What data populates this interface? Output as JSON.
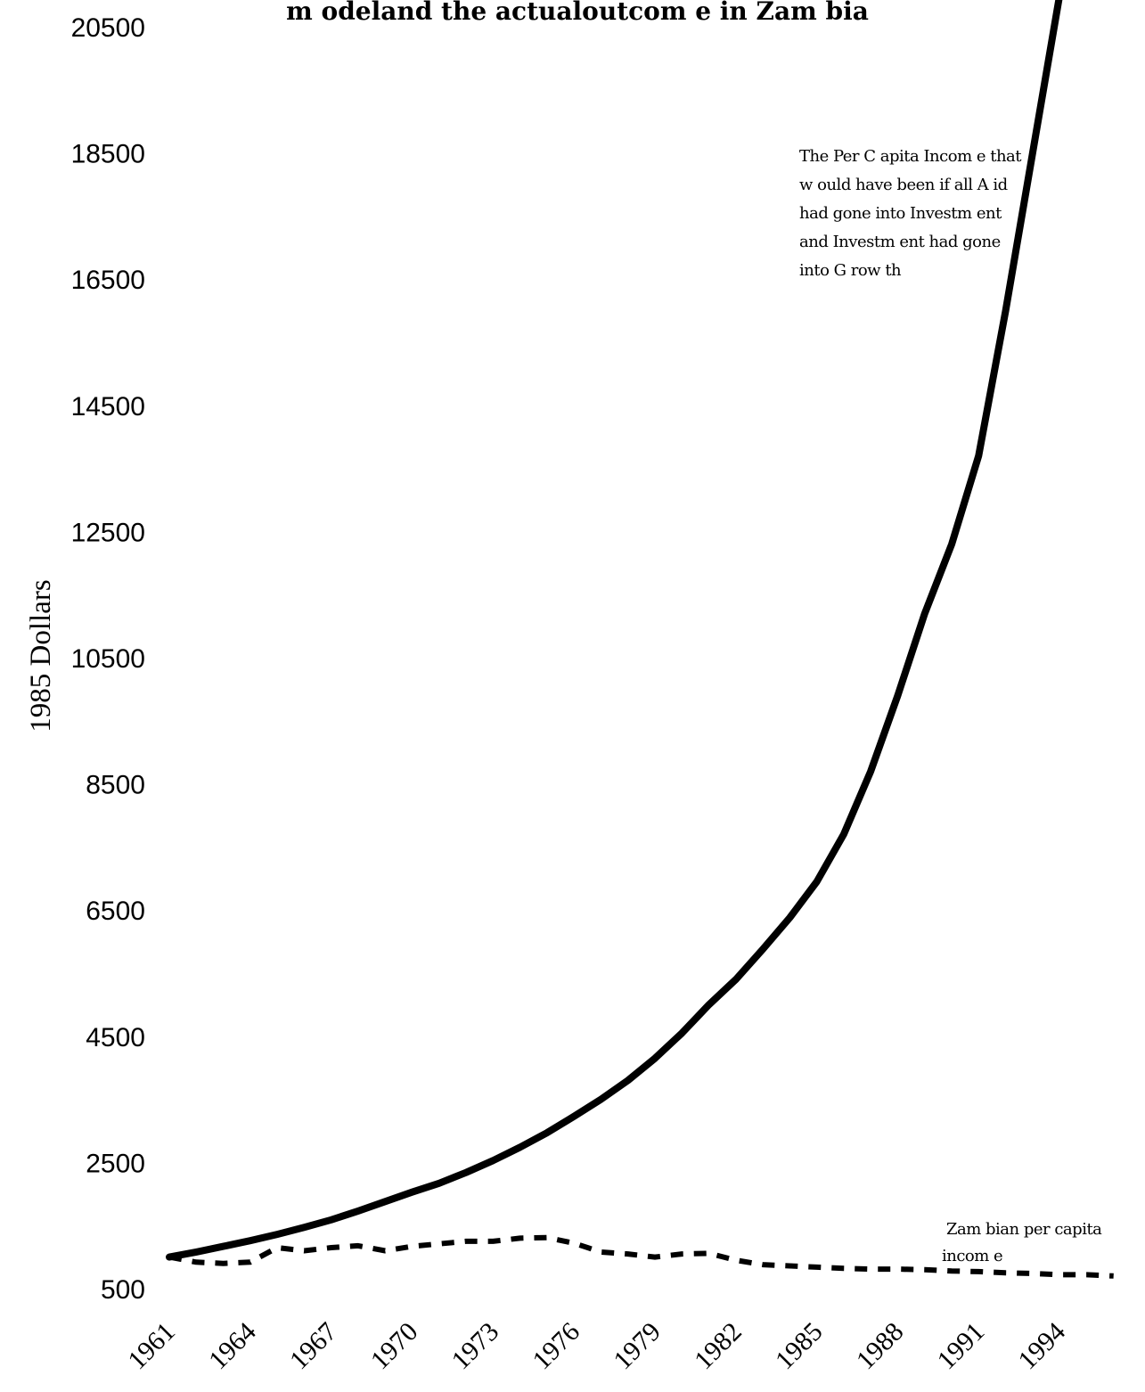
{
  "chart_data": {
    "type": "line",
    "title": "m odeland the actualoutcom e in Zam bia",
    "xlabel": "",
    "ylabel": "1985 Dollars",
    "ylim": [
      500,
      20500
    ],
    "yticks": [
      500,
      2500,
      4500,
      6500,
      8500,
      10500,
      12500,
      14500,
      16500,
      18500,
      20500
    ],
    "xticks": [
      1961,
      1964,
      1967,
      1970,
      1973,
      1976,
      1979,
      1982,
      1985,
      1988,
      1991,
      1994
    ],
    "xlim": [
      1961,
      1997
    ],
    "grid": false,
    "x": [
      1961,
      1962,
      1963,
      1964,
      1965,
      1966,
      1967,
      1968,
      1969,
      1970,
      1971,
      1972,
      1973,
      1974,
      1975,
      1976,
      1977,
      1978,
      1979,
      1980,
      1981,
      1982,
      1983,
      1984,
      1985,
      1986,
      1987,
      1988,
      1989,
      1990,
      1991,
      1992,
      1993,
      1994,
      1995,
      1996,
      1997
    ],
    "series": [
      {
        "style": "solid",
        "color": "#000000",
        "values": [
          1000,
          1080,
          1170,
          1260,
          1360,
          1470,
          1590,
          1730,
          1880,
          2030,
          2170,
          2340,
          2530,
          2740,
          2970,
          3230,
          3500,
          3800,
          4150,
          4550,
          5000,
          5400,
          5880,
          6380,
          6950,
          7700,
          8700,
          9900,
          11200,
          12300,
          13700,
          16000,
          18500,
          21000,
          null,
          null,
          null
        ]
      },
      {
        "style": "dashed",
        "color": "#000000",
        "values": [
          1000,
          920,
          900,
          920,
          1150,
          1100,
          1150,
          1180,
          1100,
          1170,
          1210,
          1250,
          1250,
          1300,
          1310,
          1220,
          1080,
          1050,
          1000,
          1050,
          1060,
          950,
          880,
          860,
          840,
          820,
          810,
          810,
          800,
          780,
          770,
          750,
          740,
          720,
          720,
          700,
          null
        ]
      }
    ],
    "annotations": {
      "model_lines": [
        "The Per C apita Incom e that",
        "w ould have been if all A id",
        "had gone into Investm ent",
        "and Investm ent had gone",
        "into G row th"
      ],
      "actual_lines": [
        "Zam bian per capita",
        "incom e"
      ]
    }
  }
}
